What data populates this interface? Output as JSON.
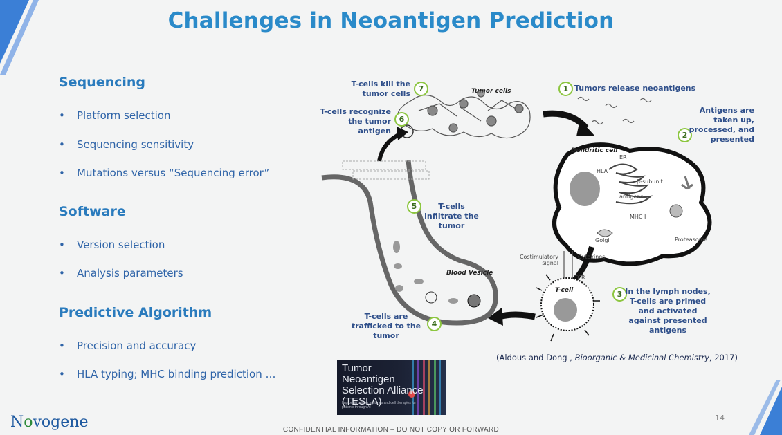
{
  "colors": {
    "title": "#2a8ac9",
    "section": "#2a7bbd",
    "bullet": "#2f64a8",
    "step_circle": "#8cc63f",
    "accent_stripe": "#3b7fd6"
  },
  "slide": {
    "title": "Challenges in Neoantigen Prediction",
    "sections": [
      {
        "heading": "Sequencing",
        "bullets": [
          "Platform selection",
          "Sequencing sensitivity",
          "Mutations versus “Sequencing error”"
        ]
      },
      {
        "heading": "Software",
        "bullets": [
          "Version selection",
          "Analysis parameters"
        ]
      },
      {
        "heading": "Predictive Algorithm",
        "bullets": [
          "Precision and accuracy",
          "HLA typing; MHC binding prediction …"
        ]
      }
    ]
  },
  "diagram": {
    "steps": [
      {
        "num": "1",
        "text": "Tumors release neoantigens"
      },
      {
        "num": "2",
        "text": "Antigens are taken up, processed, and presented"
      },
      {
        "num": "3",
        "text": "In the lymph nodes, T-cells are primed and activated against presented antigens"
      },
      {
        "num": "4",
        "text": "T-cells are trafficked to the tumor"
      },
      {
        "num": "5",
        "text": "T-cells infiltrate the tumor"
      },
      {
        "num": "6",
        "text": "T-cells recognize the tumor antigen"
      },
      {
        "num": "7",
        "text": "T-cells kill the tumor cells"
      }
    ],
    "labels": {
      "tumor_cells": "Tumor cells",
      "dendritic_cell": "Dendritic cell",
      "er": "ER",
      "hla": "HLA",
      "beta_subunit": "β-subunit",
      "antigens": "antigens",
      "mhc": "MHC I",
      "golgi": "Golgi",
      "proteasome": "Proteasome",
      "costimulatory": "Costimulatory signal",
      "cytokines": "Cytokines",
      "tcr": "TCR",
      "tcell": "T-cell",
      "blood_vesicle": "Blood Vesicle"
    },
    "citation": {
      "authors": "(Aldous and Dong ,",
      "journal": "Bioorganic & Medicinal Chemistry",
      "year": ", 2017)"
    }
  },
  "tesla": {
    "title": "Tumor Neoantigen Selection Alliance (TESLA)",
    "subtitle": "Improving cancer vaccines and cell therapies for patients through AI"
  },
  "brand": {
    "logo_prefix": "N",
    "logo_o": "o",
    "logo_suffix": "vogene"
  },
  "footer": {
    "page_number": "14",
    "confidential": "CONFIDENTIAL INFORMATION – DO NOT COPY OR FORWARD"
  }
}
